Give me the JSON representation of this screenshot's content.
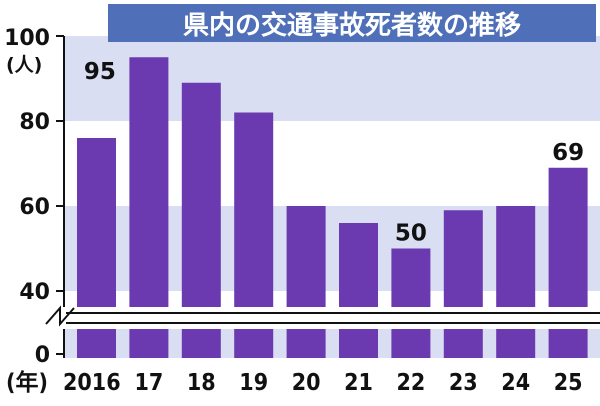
{
  "chart_data": {
    "type": "bar",
    "title": "県内の交通事故死者数の推移",
    "ylabel": "(人)",
    "xlabel": "(年)",
    "categories": [
      "2016",
      "17",
      "18",
      "19",
      "20",
      "21",
      "22",
      "23",
      "24",
      "25"
    ],
    "values": [
      76,
      95,
      89,
      82,
      60,
      56,
      50,
      59,
      60,
      69
    ],
    "data_labels": [
      {
        "category": "17",
        "text": "95"
      },
      {
        "category": "22",
        "text": "50"
      },
      {
        "category": "25",
        "text": "69"
      }
    ],
    "yticks": [
      "100",
      "80",
      "60",
      "40",
      "0"
    ],
    "ylim": [
      0,
      100
    ],
    "axis_break": "between 0 and 40",
    "grid": "horizontal bands",
    "colors": {
      "bar": "#6b3ab0",
      "band": "#d9def2",
      "title_bg": "#4f70b8"
    }
  }
}
